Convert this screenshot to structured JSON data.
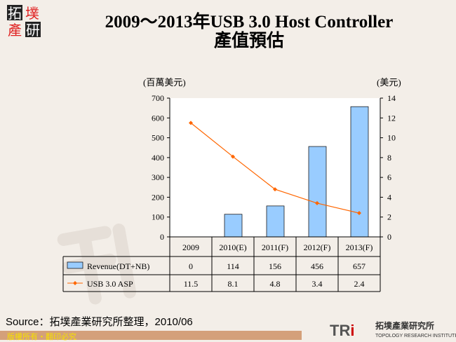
{
  "logo_text": "拓墣產研",
  "title_line1": "2009～2013年USB 3.0 Host Controller",
  "title_line2": "產值預估",
  "source": "Source：拓墣產業研究所整理，2010/06",
  "footer": "版權所有・翻印必究",
  "brand": {
    "mark": "TRi",
    "cn": "拓墣產業研究所",
    "en": "TOPOLOGY RESEARCH INSTITUTE"
  },
  "chart_data": {
    "type": "bar",
    "categories": [
      "2009",
      "2010(E)",
      "2011(F)",
      "2012(F)",
      "2013(F)"
    ],
    "ylabel": "(百萬美元)",
    "y2label": "(美元)",
    "ylim": [
      0,
      700
    ],
    "y2lim": [
      0,
      14
    ],
    "yticks": [
      "0",
      "100",
      "200",
      "300",
      "400",
      "500",
      "600",
      "700"
    ],
    "y2ticks": [
      "0",
      "2",
      "4",
      "6",
      "8",
      "10",
      "12",
      "14"
    ],
    "series": [
      {
        "name": "Revenue(DT+NB)",
        "type": "bar",
        "axis": "left",
        "color": "#99ccff",
        "values": [
          0,
          114,
          156,
          456,
          657
        ]
      },
      {
        "name": "USB 3.0 ASP",
        "type": "line",
        "axis": "right",
        "color": "#ff6600",
        "values": [
          11.5,
          8.1,
          4.8,
          3.4,
          2.4
        ]
      }
    ],
    "table": true
  }
}
